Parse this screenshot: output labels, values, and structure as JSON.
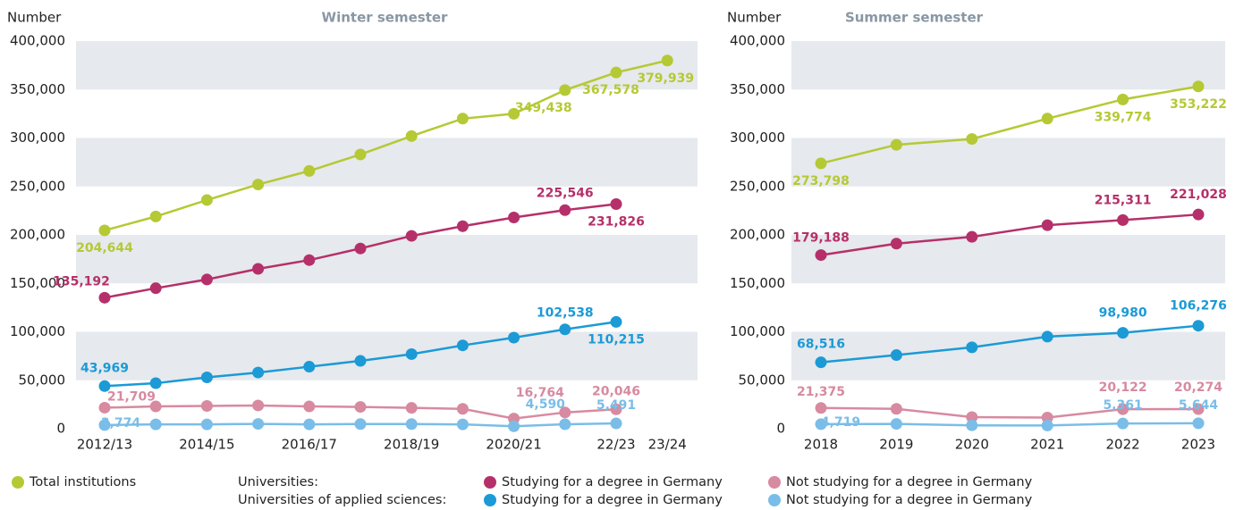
{
  "chart_data": [
    {
      "type": "line",
      "title": "Winter semester",
      "y_label": "Number",
      "categories": [
        "2012/13",
        null,
        "2014/15",
        null,
        "2016/17",
        null,
        "2018/19",
        null,
        "2020/21",
        null,
        "22/23",
        "23/24"
      ],
      "ylim": [
        0,
        400000
      ],
      "yticks": [
        0,
        {
          "value": 50000,
          "label": "50,000"
        },
        {
          "value": 100000,
          "label": "100,000"
        },
        {
          "value": 150000,
          "label": "150,000"
        },
        {
          "value": 200000,
          "label": "200,000"
        },
        {
          "value": 250000,
          "label": "250,000"
        },
        {
          "value": 300000,
          "label": "300,000"
        },
        {
          "value": 350000,
          "label": "350,000"
        },
        {
          "value": 400000,
          "label": "400,000"
        }
      ],
      "grid": "bands",
      "series": [
        {
          "name": "Total institutions",
          "color": "#b5c934",
          "values": [
            204644,
            219000,
            236000,
            252000,
            266000,
            283000,
            302000,
            320000,
            325000,
            349438,
            367578,
            379939
          ],
          "value_labels": [
            "204,644",
            null,
            null,
            null,
            null,
            null,
            null,
            null,
            null,
            "349,438",
            "367,578",
            "379,939"
          ]
        },
        {
          "name": "Studying for a degree in Germany",
          "color": "#b5306a",
          "values": [
            135192,
            145000,
            154000,
            165000,
            174000,
            186000,
            199000,
            209000,
            218000,
            225546,
            231826,
            null
          ],
          "value_labels": [
            "135,192",
            null,
            null,
            null,
            null,
            null,
            null,
            null,
            null,
            "225,546",
            "231,826",
            null
          ]
        },
        {
          "name": "Not studying for a degree in Germany",
          "color": "#d78aa0",
          "values": [
            21709,
            23000,
            23500,
            24000,
            23000,
            22500,
            21500,
            20500,
            10500,
            16764,
            20046,
            null
          ],
          "value_labels": [
            "21,709",
            null,
            null,
            null,
            null,
            null,
            null,
            null,
            null,
            "16,764",
            "20,046",
            null
          ]
        },
        {
          "name": "Studying for a degree in Germany",
          "color": "#1b9ad6",
          "values": [
            43969,
            47000,
            53000,
            58000,
            64000,
            70000,
            77000,
            86000,
            94000,
            102538,
            110215,
            null
          ],
          "value_labels": [
            "43,969",
            null,
            null,
            null,
            null,
            null,
            null,
            null,
            null,
            "102,538",
            "110,215",
            null
          ]
        },
        {
          "name": "Not studying for a degree in Germany",
          "color": "#7abde8",
          "values": [
            3774,
            4500,
            4500,
            5000,
            4500,
            4800,
            4800,
            4500,
            2500,
            4590,
            5491,
            null
          ],
          "value_labels": [
            "3,774",
            null,
            null,
            null,
            null,
            null,
            null,
            null,
            null,
            "4,590",
            "5,491",
            null
          ]
        }
      ]
    },
    {
      "type": "line",
      "title": "Summer semester",
      "y_label": "Number",
      "categories": [
        "2018",
        "2019",
        "2020",
        "2021",
        "2022",
        "2023"
      ],
      "ylim": [
        0,
        400000
      ],
      "yticks": [
        0,
        {
          "value": 50000,
          "label": "50,000"
        },
        {
          "value": 100000,
          "label": "100,000"
        },
        {
          "value": 150000,
          "label": "150,000"
        },
        {
          "value": 200000,
          "label": "200,000"
        },
        {
          "value": 250000,
          "label": "250,000"
        },
        {
          "value": 300000,
          "label": "300,000"
        },
        {
          "value": 350000,
          "label": "350,000"
        },
        {
          "value": 400000,
          "label": "400,000"
        }
      ],
      "grid": "bands",
      "series": [
        {
          "name": "Total institutions",
          "color": "#b5c934",
          "values": [
            273798,
            293000,
            299000,
            320000,
            339774,
            353222
          ],
          "value_labels": [
            "273,798",
            null,
            null,
            null,
            "339,774",
            "353,222"
          ]
        },
        {
          "name": "Studying for a degree in Germany",
          "color": "#b5306a",
          "values": [
            179188,
            191000,
            198000,
            210000,
            215311,
            221028
          ],
          "value_labels": [
            "179,188",
            null,
            null,
            null,
            "215,311",
            "221,028"
          ]
        },
        {
          "name": "Not studying for a degree in Germany",
          "color": "#d78aa0",
          "values": [
            21375,
            20500,
            12000,
            11500,
            20122,
            20274
          ],
          "value_labels": [
            "21,375",
            null,
            null,
            null,
            "20,122",
            "20,274"
          ]
        },
        {
          "name": "Studying for a degree in Germany",
          "color": "#1b9ad6",
          "values": [
            68516,
            76000,
            84000,
            95000,
            98980,
            106276
          ],
          "value_labels": [
            "68,516",
            null,
            null,
            null,
            "98,980",
            "106,276"
          ]
        },
        {
          "name": "Not studying for a degree in Germany",
          "color": "#7abde8",
          "values": [
            4719,
            5000,
            3500,
            3300,
            5361,
            5644
          ],
          "value_labels": [
            "4,719",
            null,
            null,
            null,
            "5,361",
            "5,644"
          ]
        }
      ]
    }
  ],
  "legend_groups": [
    "Universities:",
    "Universities of applied sciences:"
  ]
}
